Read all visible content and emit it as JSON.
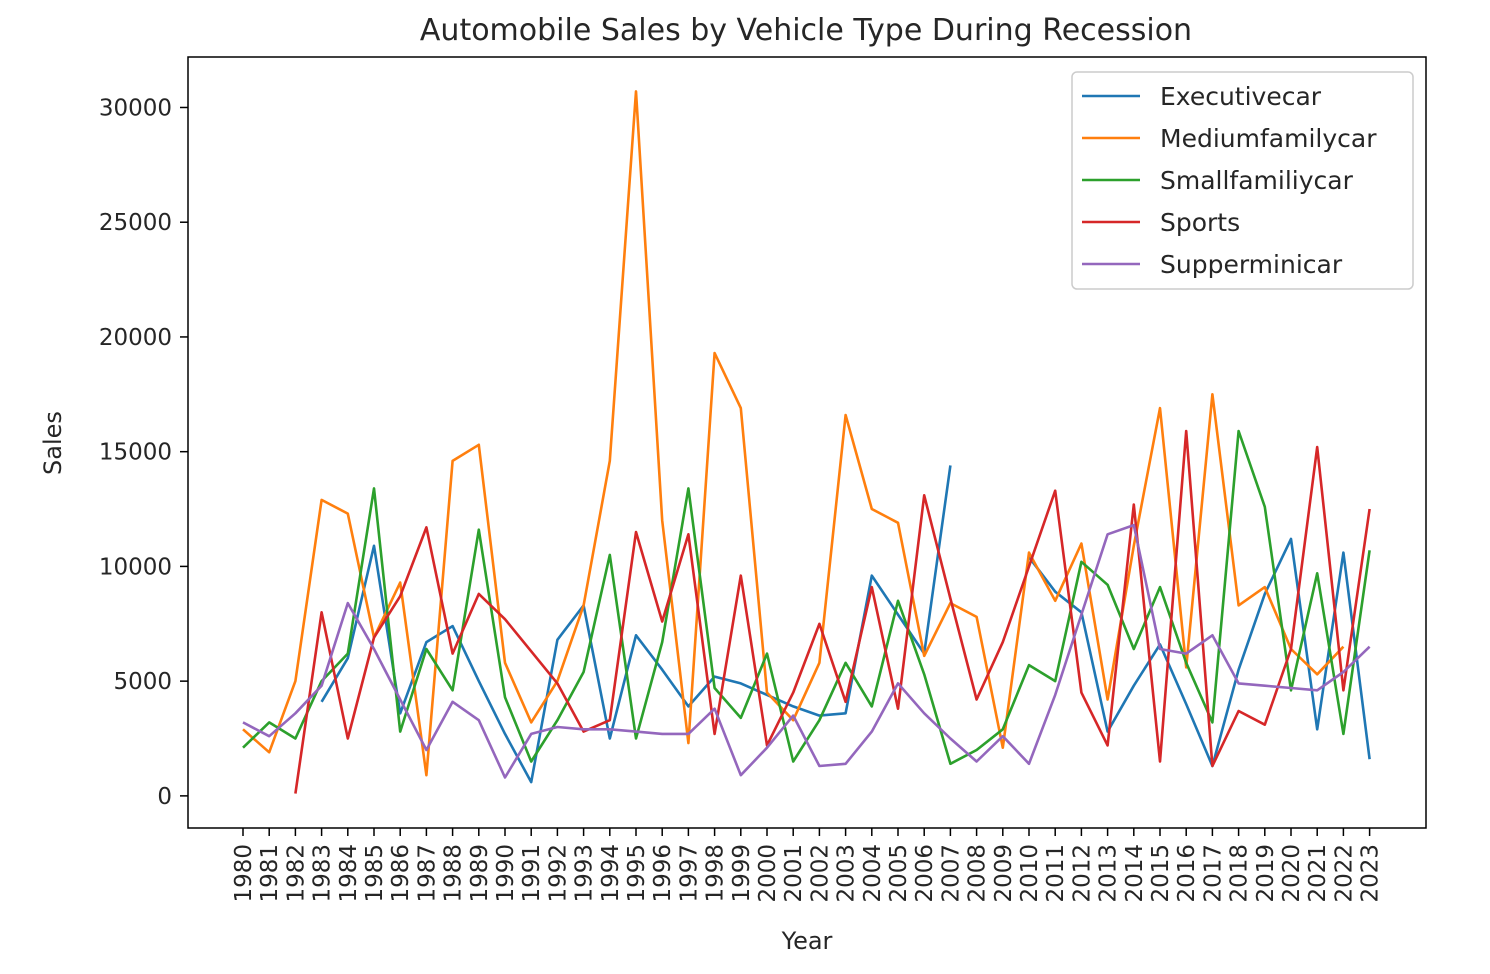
{
  "chart_data": {
    "type": "line",
    "title": "Automobile Sales by Vehicle Type During Recession",
    "xlabel": "Year",
    "ylabel": "Sales",
    "ylim": [
      -1400,
      32200
    ],
    "yticks": [
      0,
      5000,
      10000,
      15000,
      20000,
      25000,
      30000
    ],
    "categories": [
      "1980",
      "1981",
      "1982",
      "1983",
      "1984",
      "1985",
      "1986",
      "1987",
      "1988",
      "1989",
      "1990",
      "1991",
      "1992",
      "1993",
      "1994",
      "1995",
      "1996",
      "1997",
      "1998",
      "1999",
      "2000",
      "2001",
      "2002",
      "2003",
      "2004",
      "2005",
      "2006",
      "2007",
      "2008",
      "2009",
      "2010",
      "2011",
      "2012",
      "2013",
      "2014",
      "2015",
      "2016",
      "2017",
      "2018",
      "2019",
      "2020",
      "2021",
      "2022",
      "2023"
    ],
    "legend_position": "top-right",
    "grid": false,
    "series": [
      {
        "name": "Executivecar",
        "color": "#1f77b4",
        "values": [
          null,
          null,
          null,
          4100,
          6000,
          10900,
          3600,
          6700,
          7400,
          5000,
          2700,
          600,
          6800,
          8300,
          2500,
          7000,
          5500,
          3900,
          5200,
          4900,
          4400,
          3900,
          3500,
          3600,
          9600,
          7900,
          6200,
          14400,
          null,
          null,
          10400,
          8900,
          8000,
          2800,
          4800,
          6600,
          4000,
          1300,
          5500,
          8800,
          11200,
          2900,
          10600,
          1600
        ]
      },
      {
        "name": "Mediumfamilycar",
        "color": "#ff7f0e",
        "values": [
          2900,
          1900,
          5000,
          12900,
          12300,
          6900,
          9300,
          900,
          14600,
          15300,
          5800,
          3200,
          5000,
          8300,
          14600,
          30700,
          12000,
          2300,
          19300,
          16900,
          4500,
          3300,
          5800,
          16600,
          12500,
          11900,
          6100,
          8400,
          7800,
          2100,
          10600,
          8500,
          11000,
          4200,
          10900,
          16900,
          5600,
          17500,
          8300,
          9100,
          6400,
          5300,
          6500,
          null
        ]
      },
      {
        "name": "Smallfamiliycar",
        "color": "#2ca02c",
        "values": [
          2100,
          3200,
          2500,
          5000,
          6200,
          13400,
          2800,
          6400,
          4600,
          11600,
          4300,
          1500,
          3300,
          5400,
          10500,
          2500,
          6700,
          13400,
          4700,
          3400,
          6200,
          1500,
          3300,
          5800,
          3900,
          8500,
          5300,
          1400,
          2000,
          2900,
          5700,
          5000,
          10200,
          9200,
          6400,
          9100,
          5800,
          3200,
          15900,
          12600,
          4600,
          9700,
          2700,
          10700
        ]
      },
      {
        "name": "Sports",
        "color": "#d62728",
        "values": [
          null,
          null,
          100,
          8000,
          2500,
          6900,
          8700,
          11700,
          6200,
          8800,
          7700,
          6300,
          4900,
          2800,
          3300,
          11500,
          7600,
          11400,
          2700,
          9600,
          2200,
          4500,
          7500,
          4100,
          9100,
          3800,
          13100,
          8600,
          4200,
          6700,
          10000,
          13300,
          4500,
          2200,
          12700,
          1500,
          15900,
          1300,
          3700,
          3100,
          6400,
          15200,
          4600,
          12500
        ]
      },
      {
        "name": "Supperminicar",
        "color": "#9467bd",
        "values": [
          3200,
          2600,
          3600,
          4800,
          8400,
          6400,
          4200,
          2000,
          4100,
          3300,
          800,
          2700,
          3000,
          2900,
          2900,
          2800,
          2700,
          2700,
          3800,
          900,
          2100,
          3500,
          1300,
          1400,
          2800,
          4900,
          3600,
          2500,
          1500,
          2600,
          1400,
          4400,
          7900,
          11400,
          11800,
          6400,
          6200,
          7000,
          4900,
          4800,
          4700,
          4600,
          5400,
          6500
        ]
      }
    ]
  }
}
